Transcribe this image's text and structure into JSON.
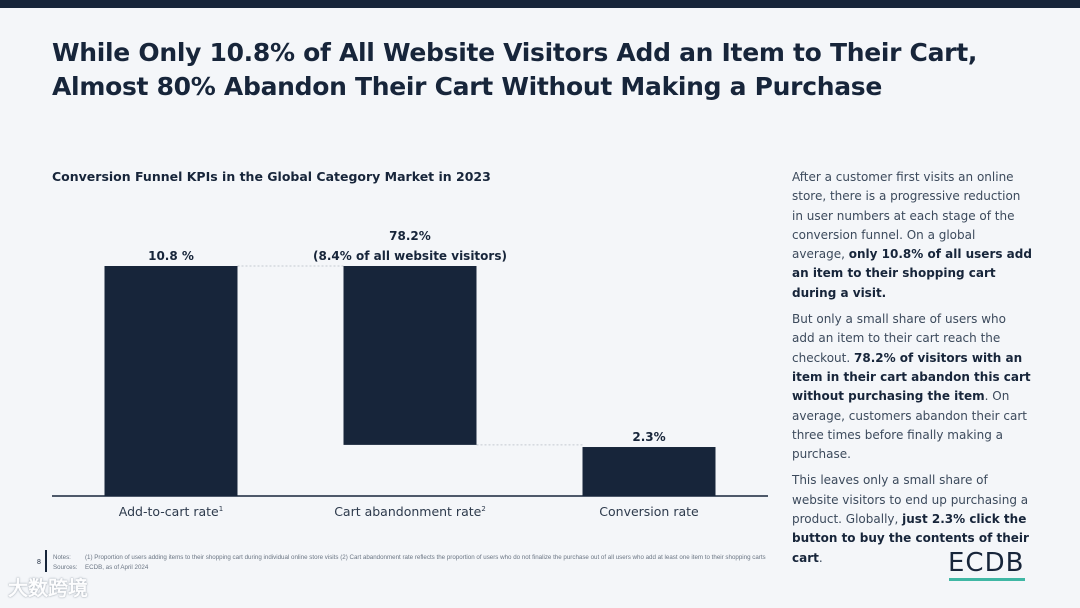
{
  "title_line1": "While Only 10.8% of All Website Visitors Add an Item to Their Cart,",
  "title_line2": "Almost 80% Abandon Their Cart Without Making a Purchase",
  "chart_data": {
    "type": "bar",
    "title": "Conversion Funnel KPIs in the Global Category Market in 2023",
    "categories": [
      "Add-to-cart rate",
      "Cart abandonment rate",
      "Conversion rate"
    ],
    "category_superscripts": [
      "1",
      "2",
      ""
    ],
    "values": [
      10.8,
      8.4,
      2.3
    ],
    "bar_bases": [
      0,
      2.4,
      0
    ],
    "data_labels": [
      [
        "10.8 %"
      ],
      [
        "78.2%",
        "(8.4% of all website visitors)"
      ],
      [
        "2.3%"
      ]
    ],
    "bar_color": "#17253a",
    "grid": false,
    "legend": "none"
  },
  "side_text": {
    "p1_a": "After a customer first visits an online store, there is a progressive reduction in user numbers at each stage of the conversion funnel. On a global average, ",
    "p1_b": "only 10.8% of all users add an item to their shopping cart during a visit.",
    "p2_a": "But only a small share of users who add an item to their cart reach the checkout. ",
    "p2_b": "78.2% of visitors with an item in their cart abandon this cart without purchasing the item",
    "p2_c": ". On average, customers abandon their cart three times before finally making a purchase.",
    "p3_a": "This leaves only a small share of website visitors to end up purchasing a product. Globally, ",
    "p3_b": "just 2.3% click the button to buy the contents of their cart",
    "p3_c": "."
  },
  "footer": {
    "page": "8",
    "notes_label": "Notes:",
    "notes": "(1) Proportion of users adding items to their shopping cart during individual online store visits (2) Cart abandonment rate reflects the proportion of users who do not finalize the purchase out of all users who add at least one item to their shopping carts",
    "sources_label": "Sources:",
    "sources": "ECDB, as of April 2024"
  },
  "logo": "ECDB",
  "watermark": "大数跨境",
  "colors": {
    "navy": "#17253a",
    "accent": "#3fb7a4",
    "background": "#f4f6f9"
  }
}
